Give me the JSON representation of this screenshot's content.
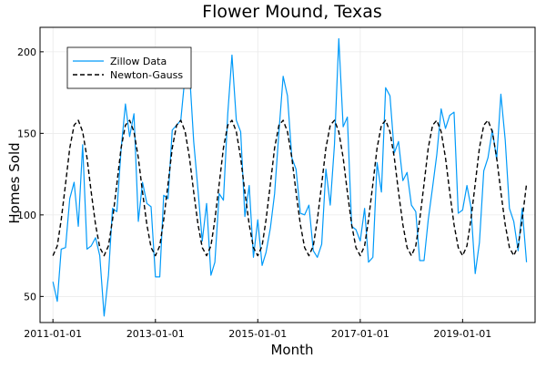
{
  "chart_data": {
    "type": "line",
    "title": "Flower Mound, Texas",
    "xlabel": "Month",
    "ylabel": "Homes Sold",
    "xlim": [
      "2010-10-01",
      "2020-06-01"
    ],
    "ylim": [
      34,
      215
    ],
    "xticks": [
      {
        "value": "2011-01-01",
        "label": "2011-01-01"
      },
      {
        "value": "2013-01-01",
        "label": "2013-01-01"
      },
      {
        "value": "2015-01-01",
        "label": "2015-01-01"
      },
      {
        "value": "2017-01-01",
        "label": "2017-01-01"
      },
      {
        "value": "2019-01-01",
        "label": "2019-01-01"
      }
    ],
    "yticks": [
      {
        "value": 50,
        "label": "50"
      },
      {
        "value": 100,
        "label": "100"
      },
      {
        "value": 150,
        "label": "150"
      },
      {
        "value": 200,
        "label": "200"
      }
    ],
    "grid": true,
    "legend": {
      "position": "top-left"
    },
    "x_start": "2011-01",
    "x_frequency": "monthly",
    "series": [
      {
        "name": "Zillow Data",
        "color": "#009af9",
        "style": "solid",
        "values": [
          59,
          47,
          79,
          80,
          110,
          120,
          93,
          143,
          79,
          81,
          86,
          75,
          38,
          63,
          104,
          102,
          140,
          168,
          148,
          162,
          96,
          120,
          107,
          105,
          62,
          62,
          112,
          110,
          152,
          155,
          158,
          186,
          188,
          145,
          115,
          84,
          107,
          63,
          71,
          113,
          109,
          162,
          198,
          158,
          151,
          99,
          118,
          74,
          97,
          69,
          77,
          92,
          113,
          151,
          185,
          173,
          135,
          128,
          101,
          100,
          106,
          78,
          74,
          82,
          128,
          106,
          143,
          208,
          154,
          160,
          93,
          91,
          84,
          104,
          71,
          74,
          132,
          114,
          178,
          173,
          138,
          145,
          121,
          126,
          106,
          102,
          72,
          72,
          97,
          117,
          137,
          165,
          153,
          161,
          163,
          101,
          103,
          118,
          105,
          64,
          83,
          127,
          135,
          152,
          134,
          174,
          146,
          104,
          96,
          78,
          104,
          71
        ]
      },
      {
        "name": "Newton-Gauss",
        "color": "#000000",
        "style": "dashed",
        "values": [
          75,
          81,
          97,
          119,
          141,
          155,
          158,
          151,
          135,
          114,
          94,
          80,
          75,
          81,
          97,
          119,
          141,
          155,
          158,
          151,
          135,
          114,
          94,
          80,
          75,
          81,
          97,
          119,
          141,
          155,
          158,
          151,
          135,
          114,
          94,
          80,
          75,
          81,
          97,
          119,
          141,
          155,
          158,
          151,
          135,
          114,
          94,
          80,
          75,
          81,
          97,
          119,
          141,
          155,
          158,
          151,
          135,
          114,
          94,
          80,
          75,
          81,
          97,
          119,
          141,
          155,
          158,
          151,
          135,
          114,
          94,
          80,
          75,
          81,
          97,
          119,
          141,
          155,
          158,
          151,
          135,
          114,
          94,
          80,
          75,
          81,
          97,
          119,
          141,
          155,
          158,
          151,
          135,
          114,
          94,
          80,
          75,
          81,
          97,
          119,
          141,
          155,
          158,
          151,
          135,
          114,
          94,
          80,
          75,
          81,
          97,
          119
        ]
      }
    ]
  }
}
